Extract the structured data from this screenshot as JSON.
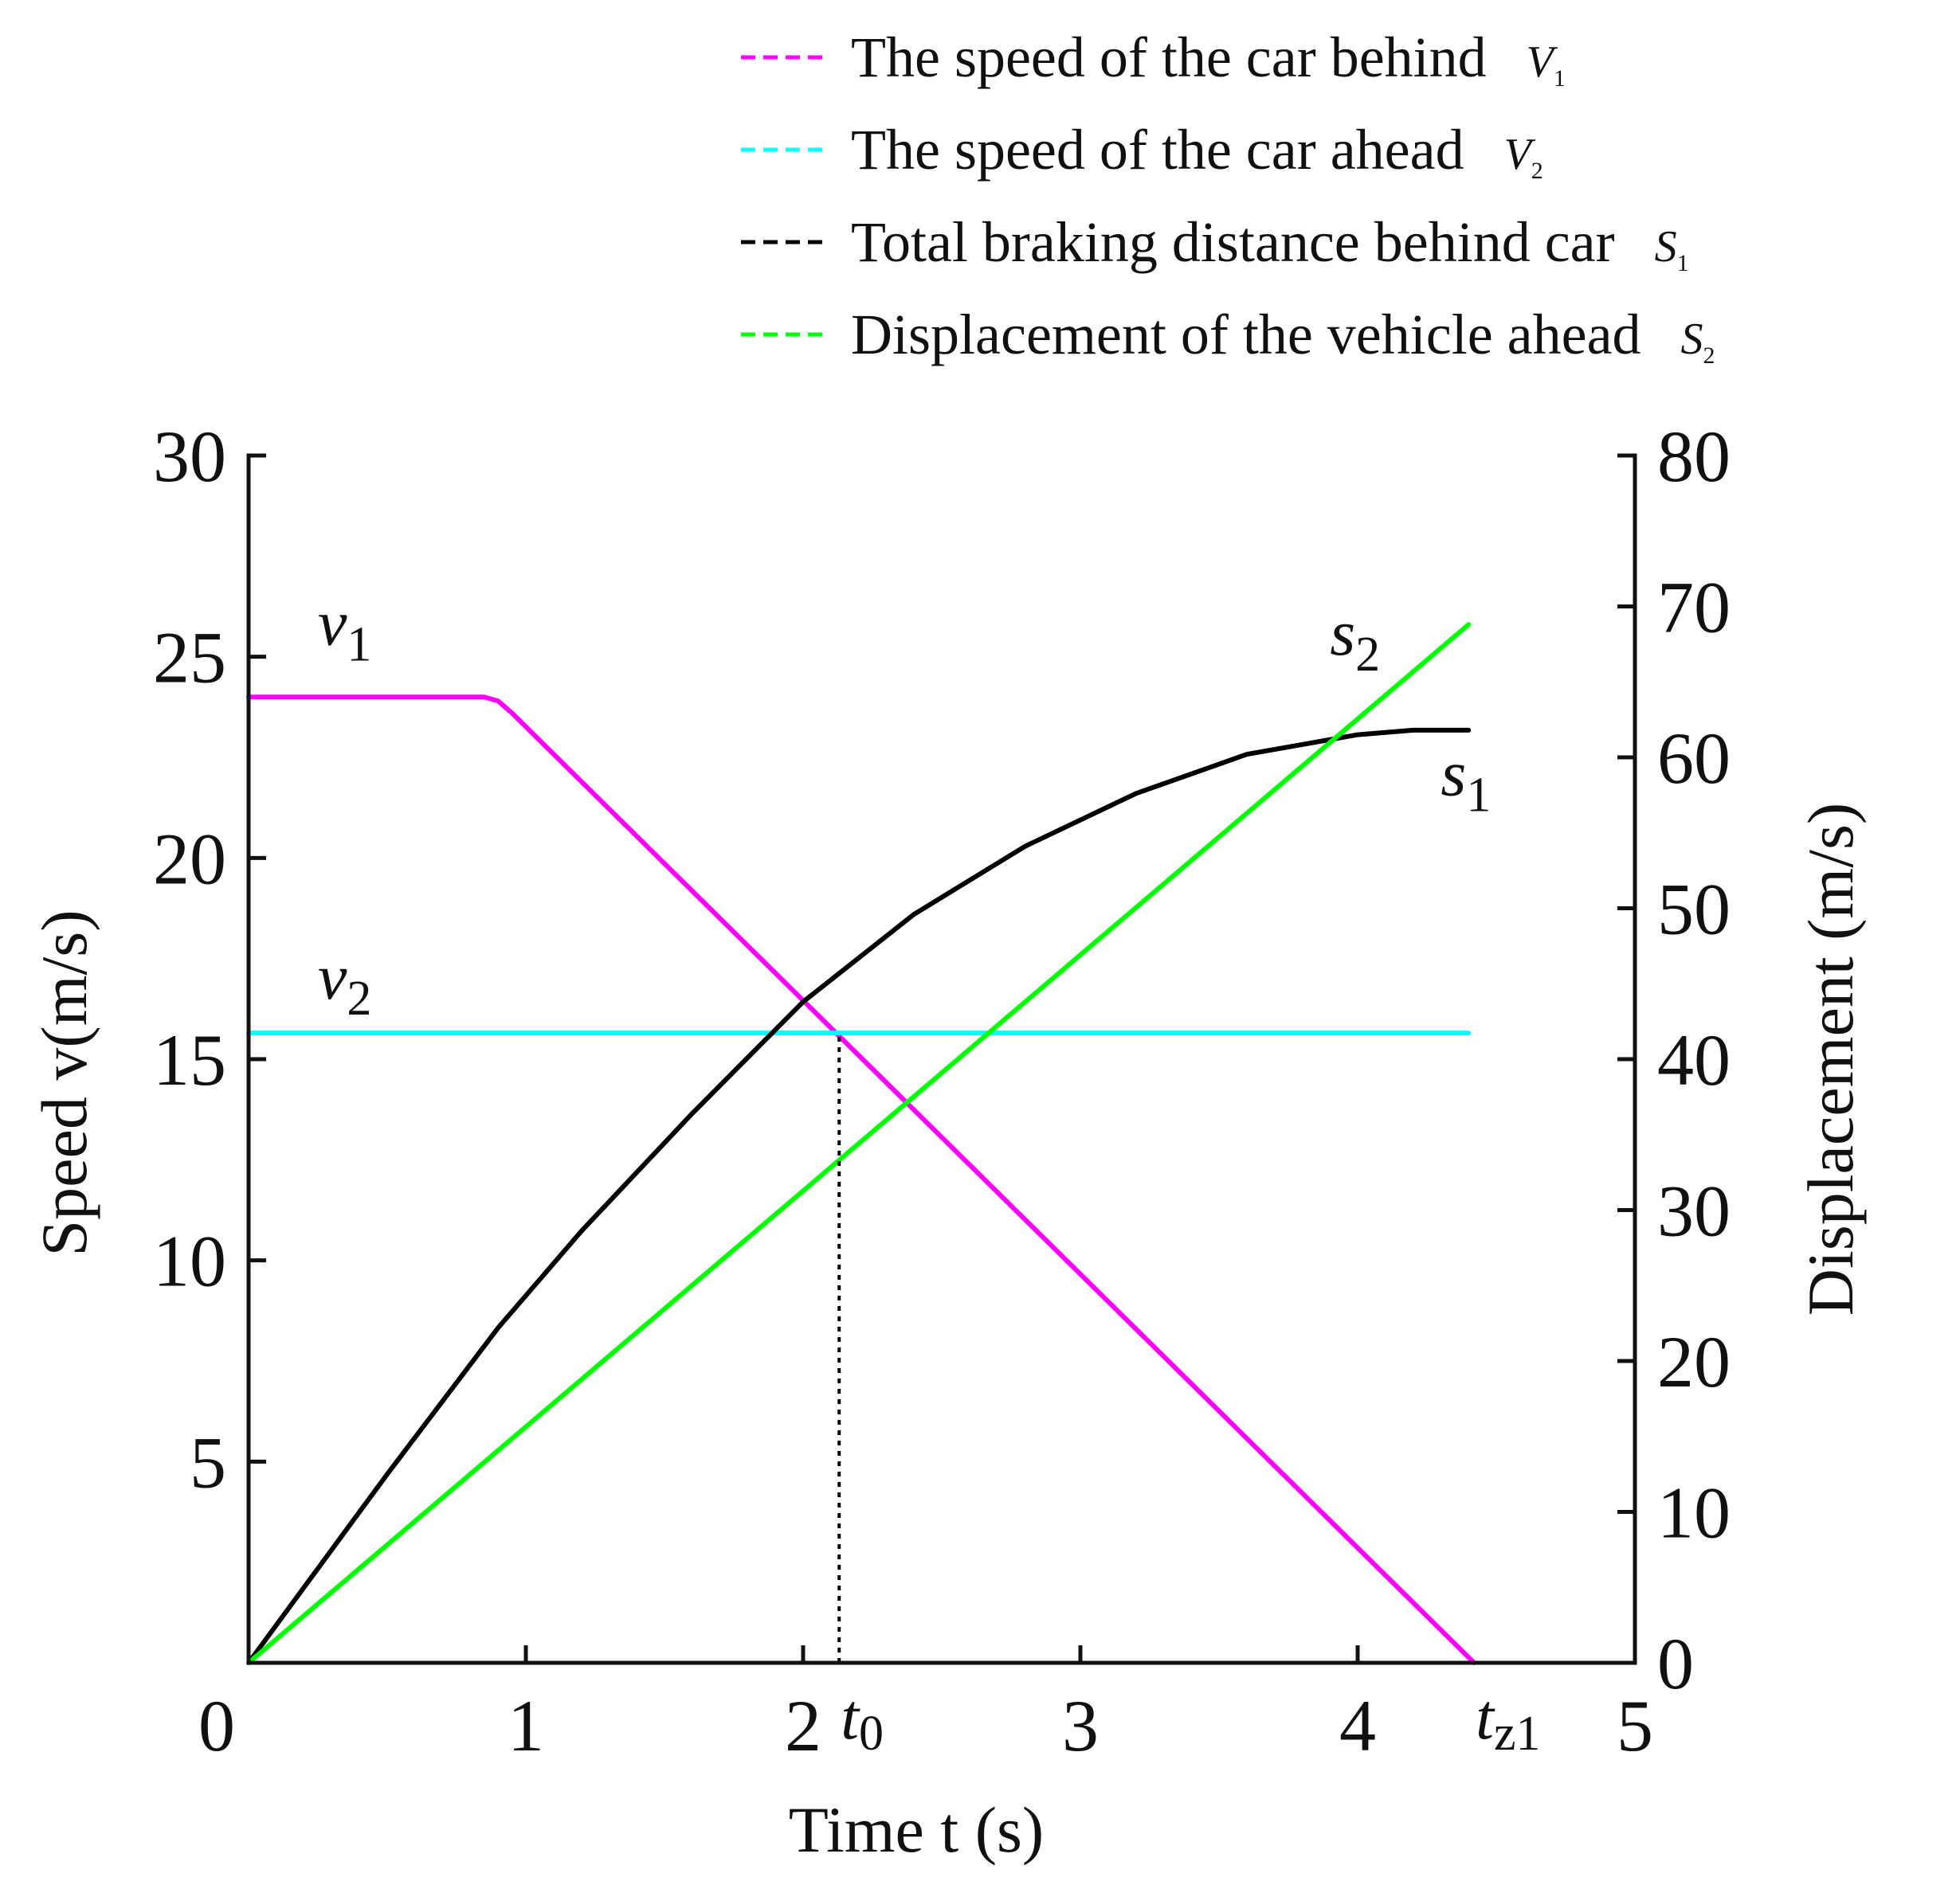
{
  "chart_data": {
    "type": "line",
    "x_axis": {
      "label": "Time t (s)",
      "range": [
        0,
        5
      ],
      "ticks": [
        "0",
        "1",
        "2",
        "3",
        "4",
        "5"
      ],
      "special_ticks": [
        {
          "text": "t",
          "sub": "0",
          "x": 2.13
        },
        {
          "text": "t",
          "sub": "z1",
          "x": 4.42
        }
      ]
    },
    "y_axis_left": {
      "label": "Speed v(m/s)",
      "range": [
        0,
        30
      ],
      "ticks": [
        "5",
        "10",
        "15",
        "20",
        "25",
        "30"
      ]
    },
    "y_axis_right": {
      "label": "Displacement (m/s)",
      "range": [
        0,
        80
      ],
      "ticks": [
        "0",
        "10",
        "20",
        "30",
        "40",
        "50",
        "60",
        "70",
        "80"
      ]
    },
    "legend": {
      "position": "top-right",
      "entries": [
        {
          "label": "The speed of the car behind",
          "symbol": "V",
          "sub": "1",
          "color": "#ff00ff"
        },
        {
          "label": "The speed of the car ahead",
          "symbol": "V",
          "sub": "2",
          "color": "#00ffff"
        },
        {
          "label": "Total braking distance behind car",
          "symbol": "S",
          "sub": "1",
          "color": "#000000"
        },
        {
          "label": "Displacement of the vehicle ahead",
          "symbol": "S",
          "sub": "2",
          "color": "#00ff00"
        }
      ]
    },
    "series": [
      {
        "key": "v1",
        "axis": "left",
        "color": "#ff00ff",
        "label_text": "v",
        "label_sub": "1",
        "label_at": [
          0.25,
          25.3
        ],
        "x": [
          0,
          0.85,
          0.9,
          0.95,
          4.42
        ],
        "y": [
          24,
          24,
          23.9,
          23.6,
          0
        ]
      },
      {
        "key": "v2",
        "axis": "left",
        "color": "#00ffff",
        "label_text": "v",
        "label_sub": "2",
        "label_at": [
          0.25,
          16.5
        ],
        "x": [
          0,
          4.4
        ],
        "y": [
          15.65,
          15.65
        ]
      },
      {
        "key": "s1",
        "axis": "right",
        "color": "#000000",
        "label_text": "s",
        "label_sub": "1",
        "label_at": [
          4.3,
          57.5
        ],
        "x": [
          0,
          0.5,
          0.9,
          1.2,
          1.6,
          2.0,
          2.4,
          2.8,
          3.2,
          3.6,
          4.0,
          4.2,
          4.4
        ],
        "y": [
          0,
          12.5,
          22.2,
          28.6,
          36.4,
          43.8,
          49.6,
          54.1,
          57.6,
          60.2,
          61.5,
          61.8,
          61.8
        ]
      },
      {
        "key": "s2",
        "axis": "right",
        "color": "#00ff00",
        "label_text": "s",
        "label_sub": "2",
        "label_at": [
          3.9,
          66.8
        ],
        "x": [
          0,
          4.4
        ],
        "y": [
          0,
          68.8
        ]
      }
    ],
    "guides": [
      {
        "type": "vertical-dotted",
        "x": 2.13,
        "y_from": 0,
        "y_to": 15.65,
        "color": "#000000"
      }
    ]
  }
}
